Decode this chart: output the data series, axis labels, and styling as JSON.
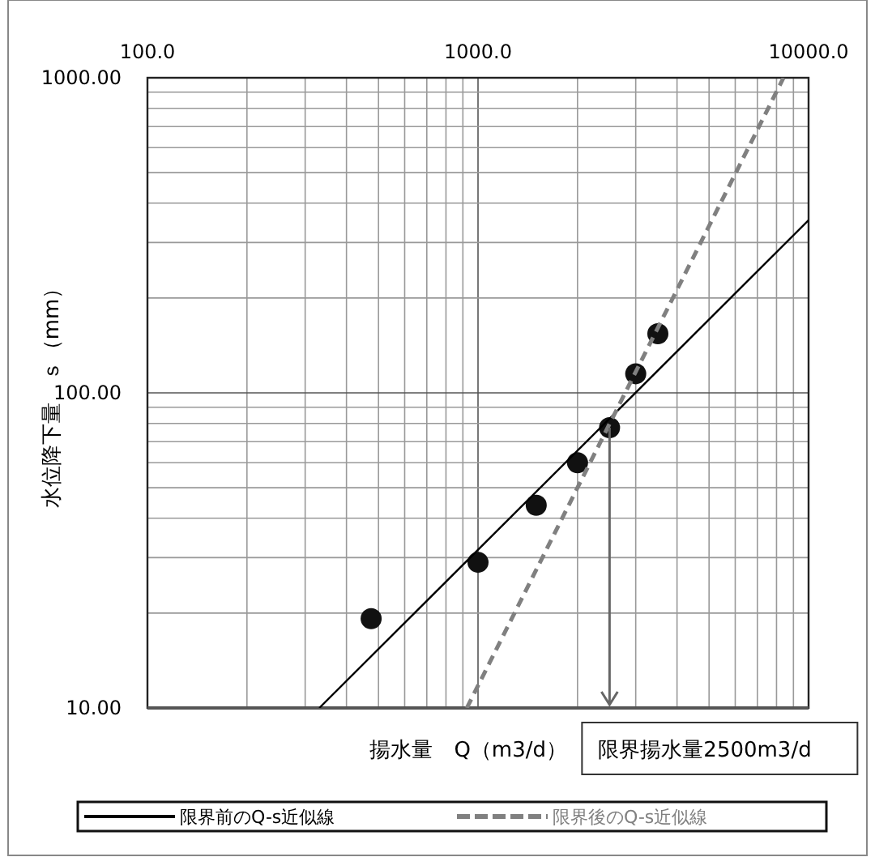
{
  "chart_data": {
    "type": "scatter",
    "xlabel": "揚水量　Q（m3/d）",
    "ylabel": "水位降下量　ｓ（mm）",
    "log": "xy",
    "grid": true,
    "legend": "bottom",
    "xlim": [
      100,
      10000
    ],
    "ylim": [
      10,
      1000
    ],
    "xticks": [
      {
        "value": 100,
        "label": "100.0"
      },
      {
        "value": 200,
        "label": null
      },
      {
        "value": 300,
        "label": null
      },
      {
        "value": 400,
        "label": null
      },
      {
        "value": 500,
        "label": null
      },
      {
        "value": 600,
        "label": null
      },
      {
        "value": 700,
        "label": null
      },
      {
        "value": 800,
        "label": null
      },
      {
        "value": 900,
        "label": null
      },
      {
        "value": 1000,
        "label": "1000.0"
      },
      {
        "value": 2000,
        "label": null
      },
      {
        "value": 3000,
        "label": null
      },
      {
        "value": 4000,
        "label": null
      },
      {
        "value": 5000,
        "label": null
      },
      {
        "value": 6000,
        "label": null
      },
      {
        "value": 7000,
        "label": null
      },
      {
        "value": 8000,
        "label": null
      },
      {
        "value": 9000,
        "label": null
      },
      {
        "value": 10000,
        "label": "10000.0"
      }
    ],
    "yticks": [
      {
        "value": 10,
        "label": "10.00"
      },
      {
        "value": 20,
        "label": null
      },
      {
        "value": 30,
        "label": null
      },
      {
        "value": 40,
        "label": null
      },
      {
        "value": 50,
        "label": null
      },
      {
        "value": 60,
        "label": null
      },
      {
        "value": 70,
        "label": null
      },
      {
        "value": 80,
        "label": null
      },
      {
        "value": 90,
        "label": null
      },
      {
        "value": 100,
        "label": "100.00"
      },
      {
        "value": 200,
        "label": null
      },
      {
        "value": 300,
        "label": null
      },
      {
        "value": 400,
        "label": null
      },
      {
        "value": 500,
        "label": null
      },
      {
        "value": 600,
        "label": null
      },
      {
        "value": 700,
        "label": null
      },
      {
        "value": 800,
        "label": null
      },
      {
        "value": 900,
        "label": null
      },
      {
        "value": 1000,
        "label": "1000.00"
      }
    ],
    "series": [
      {
        "marker": "circle",
        "color": "#111111",
        "x": [
          475,
          1000,
          1500,
          2000,
          2500,
          3000,
          3500
        ],
        "values": [
          19.2,
          29,
          44,
          60,
          77.5,
          115,
          154
        ]
      },
      {
        "type": "line",
        "name": "限界前のQ-s近似線",
        "color": "#000000",
        "line_style": "solid",
        "x": [
          331,
          10000
        ],
        "values": [
          10,
          353
        ]
      },
      {
        "type": "line",
        "name": "限界後のQ-s近似線",
        "color": "#808080",
        "line_style": "dashed",
        "x": [
          925,
          8400
        ],
        "values": [
          10,
          1000
        ]
      }
    ],
    "ref_lines": [
      {
        "axis": "x",
        "value": 2500,
        "label": "限界揚水量2500m3/d",
        "color": "#666666"
      }
    ]
  }
}
